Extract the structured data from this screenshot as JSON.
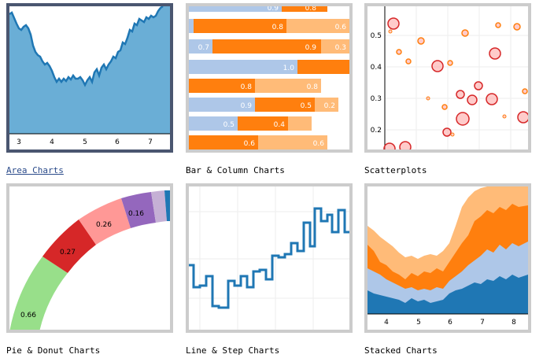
{
  "gallery": {
    "area": {
      "caption": "Area Charts",
      "ticks": [
        "3",
        "4",
        "5",
        "6",
        "7"
      ]
    },
    "bar": {
      "caption": "Bar & Column Charts",
      "labels": [
        "0.9",
        "0.8",
        "0.8",
        "0.6",
        "0.7",
        "0.9",
        "0.3",
        "1.0",
        "0.8",
        "0.8",
        "0.9",
        "0.5",
        "0.2",
        "0.5",
        "0.4",
        "0.6",
        "0.6"
      ]
    },
    "scatter": {
      "caption": "Scatterplots",
      "ticks": [
        "0.5",
        "0.4",
        "0.3",
        "0.2"
      ]
    },
    "pie": {
      "caption": "Pie & Donut Charts",
      "labels": [
        "0.66",
        "0.27",
        "0.26",
        "0.16"
      ]
    },
    "line": {
      "caption": "Line & Step Charts"
    },
    "stacked": {
      "caption": "Stacked Charts",
      "ticks": [
        "4",
        "5",
        "6",
        "7",
        "8"
      ]
    }
  },
  "colors": {
    "area_fill": "#6aaed6",
    "area_line": "#1f77b4",
    "orange": "#ff7f0e",
    "light_orange": "#ffbb78",
    "light_blue": "#aec7e8",
    "blue": "#1f77b4",
    "red": "#d62728",
    "green": "#98df8a",
    "salmon": "#ff9896",
    "purple": "#9467bd",
    "lavender": "#c5b0d5"
  }
}
